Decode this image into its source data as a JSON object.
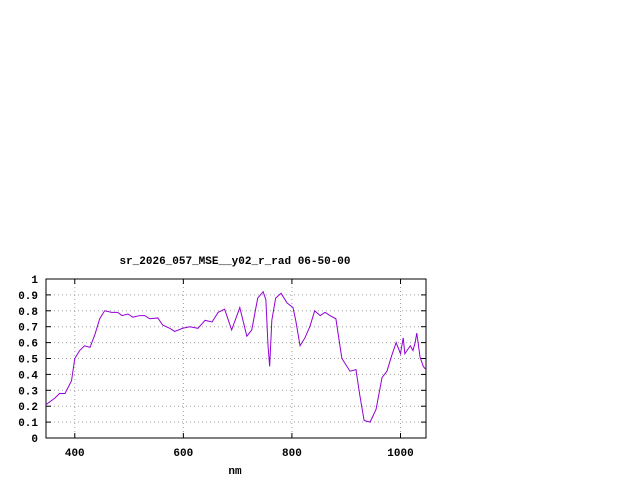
{
  "chart_data": {
    "type": "line",
    "title": "sr_2026_057_MSE__y02_r_rad 06-50-00",
    "x_label": "nm",
    "x": [
      347,
      363,
      372,
      382,
      394,
      400,
      409,
      418,
      428,
      437,
      446,
      455,
      468,
      479,
      487,
      498,
      507,
      520,
      529,
      538,
      553,
      562,
      575,
      584,
      599,
      612,
      627,
      640,
      653,
      664,
      676,
      689,
      704,
      717,
      726,
      737,
      747,
      752,
      756,
      759,
      763,
      770,
      780,
      791,
      802,
      807,
      815,
      824,
      833,
      842,
      852,
      861,
      870,
      881,
      892,
      907,
      918,
      925,
      933,
      944,
      955,
      966,
      975,
      984,
      992,
      1000,
      1005,
      1008,
      1018,
      1023,
      1027,
      1030,
      1036,
      1042,
      1047
    ],
    "series": [
      {
        "color": "#9400d3",
        "values": [
          0.21,
          0.25,
          0.28,
          0.28,
          0.36,
          0.5,
          0.55,
          0.58,
          0.57,
          0.65,
          0.75,
          0.8,
          0.79,
          0.79,
          0.77,
          0.78,
          0.76,
          0.77,
          0.77,
          0.75,
          0.755,
          0.71,
          0.69,
          0.67,
          0.69,
          0.7,
          0.69,
          0.74,
          0.73,
          0.79,
          0.81,
          0.68,
          0.82,
          0.64,
          0.68,
          0.88,
          0.92,
          0.87,
          0.58,
          0.45,
          0.74,
          0.88,
          0.91,
          0.85,
          0.82,
          0.74,
          0.58,
          0.63,
          0.7,
          0.8,
          0.77,
          0.79,
          0.77,
          0.75,
          0.5,
          0.42,
          0.43,
          0.27,
          0.11,
          0.1,
          0.18,
          0.38,
          0.42,
          0.52,
          0.6,
          0.53,
          0.63,
          0.53,
          0.58,
          0.55,
          0.6,
          0.66,
          0.51,
          0.45,
          0.43
        ]
      }
    ],
    "xlim": [
      347,
      1047
    ],
    "xticks": [
      400,
      600,
      800,
      1000
    ],
    "ylim": [
      0,
      1
    ],
    "yticks": [
      0,
      0.1,
      0.2,
      0.3,
      0.4,
      0.5,
      0.6,
      0.7,
      0.8,
      0.9,
      1
    ],
    "grid": true
  }
}
